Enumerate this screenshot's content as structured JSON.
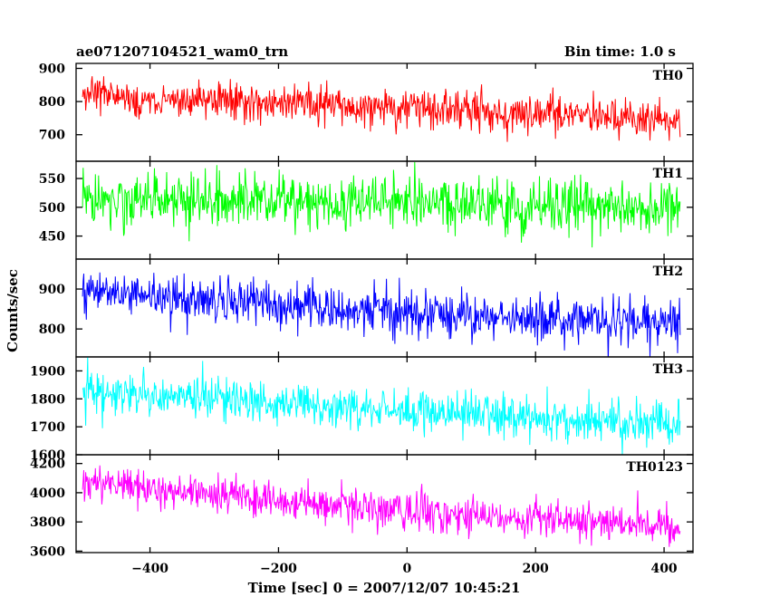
{
  "header": {
    "title": "ae071207104521_wam0_trn",
    "bin_time": "Bin time: 1.0 s"
  },
  "chart_data": {
    "type": "line",
    "xlabel": "Time [sec] 0 = 2007/12/07 10:45:21",
    "ylabel": "Counts/sec",
    "xlim": [
      -515,
      445
    ],
    "x_ticks": [
      -400,
      -200,
      0,
      200,
      400
    ],
    "x_tick_labels": [
      "−400",
      "−200",
      "0",
      "200",
      "400"
    ],
    "x_data_range": [
      -505,
      425
    ],
    "bin_time_s": 1.0,
    "panels": [
      {
        "name": "TH0",
        "color": "#ff0000",
        "ylim": [
          620,
          915
        ],
        "yticks": [
          700,
          800,
          900
        ],
        "ytick_labels": [
          "700",
          "800",
          "900"
        ],
        "trend": [
          [
            -500,
            820
          ],
          [
            -250,
            800
          ],
          [
            0,
            780
          ],
          [
            200,
            765
          ],
          [
            420,
            745
          ]
        ],
        "noise_sd": 28
      },
      {
        "name": "TH1",
        "color": "#00ff00",
        "ylim": [
          410,
          580
        ],
        "yticks": [
          450,
          500,
          550
        ],
        "ytick_labels": [
          "450",
          "500",
          "550"
        ],
        "trend": [
          [
            -500,
            515
          ],
          [
            0,
            508
          ],
          [
            420,
            500
          ]
        ],
        "noise_sd": 23
      },
      {
        "name": "TH2",
        "color": "#0000ff",
        "ylim": [
          730,
          975
        ],
        "yticks": [
          800,
          900
        ],
        "ytick_labels": [
          "800",
          "900"
        ],
        "trend": [
          [
            -500,
            895
          ],
          [
            -250,
            865
          ],
          [
            0,
            840
          ],
          [
            200,
            825
          ],
          [
            420,
            815
          ]
        ],
        "noise_sd": 28
      },
      {
        "name": "TH3",
        "color": "#00ffff",
        "ylim": [
          1600,
          1950
        ],
        "yticks": [
          1600,
          1700,
          1800,
          1900
        ],
        "ytick_labels": [
          "1600",
          "1700",
          "1800",
          "1900"
        ],
        "trend": [
          [
            -500,
            1830
          ],
          [
            -300,
            1800
          ],
          [
            0,
            1755
          ],
          [
            200,
            1730
          ],
          [
            420,
            1710
          ]
        ],
        "noise_sd": 38
      },
      {
        "name": "TH0123",
        "color": "#ff00ff",
        "ylim": [
          3590,
          4260
        ],
        "yticks": [
          3600,
          3800,
          4000,
          4200
        ],
        "ytick_labels": [
          "3600",
          "3800",
          "4000",
          "4200"
        ],
        "trend": [
          [
            -500,
            4080
          ],
          [
            -300,
            3990
          ],
          [
            0,
            3870
          ],
          [
            200,
            3810
          ],
          [
            420,
            3770
          ]
        ],
        "noise_sd": 65
      }
    ]
  }
}
